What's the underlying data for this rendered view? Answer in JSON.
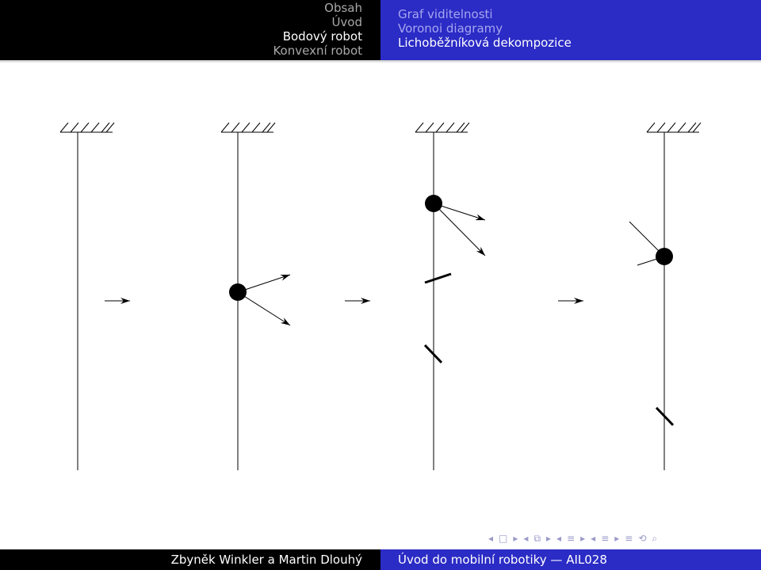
{
  "header": {
    "left_items": [
      {
        "label": "Obsah",
        "state": "dim"
      },
      {
        "label": "Úvod",
        "state": "dim"
      },
      {
        "label": "Bodový robot",
        "state": "active"
      },
      {
        "label": "Konvexní robot",
        "state": "dim"
      }
    ],
    "right_items": [
      {
        "label": "Graf viditelnosti",
        "state": "dim"
      },
      {
        "label": "Voronoi diagramy",
        "state": "dim"
      },
      {
        "label": "Lichoběžníková dekompozice",
        "state": "active"
      }
    ]
  },
  "footer": {
    "authors": "Zbyněk Winkler a Martin Dlouhý",
    "course": "Úvod do mobilní robotiky — AIL028"
  },
  "nav_controls": [
    {
      "icon": "nav-first-frame-icon",
      "glyph": "◂"
    },
    {
      "icon": "nav-frame-icon",
      "glyph": "□"
    },
    {
      "icon": "nav-next-frame-icon",
      "glyph": "▸"
    },
    {
      "icon": "nav-prev-subsection-icon",
      "glyph": "◂"
    },
    {
      "icon": "nav-subsection-icon",
      "glyph": "⧉"
    },
    {
      "icon": "nav-next-subsection-icon",
      "glyph": "▸"
    },
    {
      "icon": "nav-prev-section-icon",
      "glyph": "◂"
    },
    {
      "icon": "nav-section-icon",
      "glyph": "≡"
    },
    {
      "icon": "nav-next-section-icon",
      "glyph": "▸"
    },
    {
      "icon": "nav-prev-doc-icon",
      "glyph": "◂"
    },
    {
      "icon": "nav-doc-icon",
      "glyph": "≡"
    },
    {
      "icon": "nav-next-doc-icon",
      "glyph": "▸"
    },
    {
      "icon": "nav-appendix-icon",
      "glyph": "≡"
    },
    {
      "icon": "nav-search-icon",
      "glyph": "⟲"
    },
    {
      "icon": "nav-zoom-icon",
      "glyph": "⌕"
    }
  ],
  "colors": {
    "header_dark": "#000000",
    "header_blue": "#2b2bc6",
    "dim_gray": "#a8a8a8",
    "dim_blue": "#a6a6ef",
    "nav_icon": "#9a9ac9",
    "diagram_ink": "#000000"
  }
}
